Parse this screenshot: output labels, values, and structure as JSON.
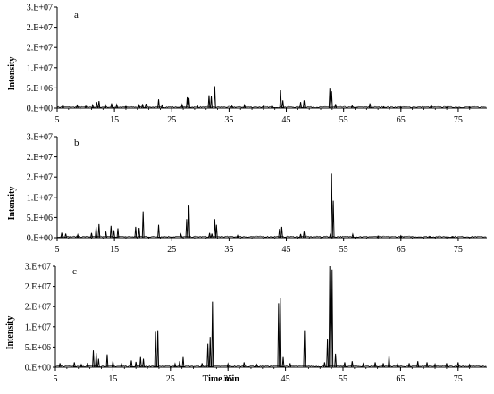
{
  "chart_data": [
    {
      "type": "line",
      "panel_label": "a",
      "ylabel": "Intensity",
      "xlabel": "",
      "xlim": [
        5,
        80
      ],
      "ylim": [
        0,
        30000000
      ],
      "x_ticks": [
        "5",
        "15",
        "25",
        "35",
        "45",
        "55",
        "65",
        "75"
      ],
      "y_ticks": [
        "0.E+00",
        "5.E+06",
        "1.E+07",
        "2.E+07",
        "2.E+07",
        "3.E+07"
      ],
      "grid": false,
      "peaks": [
        [
          6.0,
          1000000
        ],
        [
          8.5,
          800000
        ],
        [
          10.0,
          600000
        ],
        [
          11.2,
          900000
        ],
        [
          11.9,
          1800000
        ],
        [
          12.3,
          2100000
        ],
        [
          13.4,
          1000000
        ],
        [
          14.5,
          1400000
        ],
        [
          15.4,
          1000000
        ],
        [
          17.0,
          500000
        ],
        [
          19.3,
          900000
        ],
        [
          19.9,
          1200000
        ],
        [
          20.5,
          1300000
        ],
        [
          22.7,
          2600000
        ],
        [
          23.3,
          800000
        ],
        [
          26.8,
          1000000
        ],
        [
          27.7,
          3200000
        ],
        [
          28.0,
          3000000
        ],
        [
          29.5,
          700000
        ],
        [
          31.5,
          3800000
        ],
        [
          31.9,
          3600000
        ],
        [
          32.5,
          6500000
        ],
        [
          35.5,
          600000
        ],
        [
          37.7,
          900000
        ],
        [
          41.0,
          600000
        ],
        [
          42.5,
          800000
        ],
        [
          44.0,
          5300000
        ],
        [
          44.4,
          2300000
        ],
        [
          47.5,
          1800000
        ],
        [
          48.1,
          2300000
        ],
        [
          52.6,
          5800000
        ],
        [
          52.9,
          5000000
        ],
        [
          53.6,
          1200000
        ],
        [
          56.5,
          700000
        ],
        [
          59.6,
          1400000
        ],
        [
          62.0,
          400000
        ],
        [
          65.0,
          400000
        ],
        [
          70.3,
          900000
        ],
        [
          73.0,
          400000
        ],
        [
          77.0,
          300000
        ]
      ]
    },
    {
      "type": "line",
      "panel_label": "b",
      "ylabel": "Intensity",
      "xlabel": "",
      "xlim": [
        5,
        80
      ],
      "ylim": [
        0,
        30000000
      ],
      "x_ticks": [
        "5",
        "15",
        "25",
        "35",
        "45",
        "55",
        "65",
        "75"
      ],
      "y_ticks": [
        "0.E+00",
        "5.E+06",
        "1.E+07",
        "2.E+07",
        "2.E+07",
        "3.E+07"
      ],
      "grid": false,
      "peaks": [
        [
          5.8,
          1500000
        ],
        [
          6.5,
          1200000
        ],
        [
          8.6,
          900000
        ],
        [
          11.0,
          1400000
        ],
        [
          11.8,
          3200000
        ],
        [
          12.3,
          4000000
        ],
        [
          13.5,
          1800000
        ],
        [
          14.4,
          3500000
        ],
        [
          14.9,
          2200000
        ],
        [
          15.6,
          2800000
        ],
        [
          18.7,
          3200000
        ],
        [
          19.3,
          2900000
        ],
        [
          20.0,
          7800000
        ],
        [
          22.7,
          3800000
        ],
        [
          26.6,
          1000000
        ],
        [
          27.6,
          5500000
        ],
        [
          28.0,
          9500000
        ],
        [
          31.6,
          1400000
        ],
        [
          32.0,
          1200000
        ],
        [
          32.5,
          5500000
        ],
        [
          32.8,
          3800000
        ],
        [
          36.5,
          700000
        ],
        [
          43.8,
          2600000
        ],
        [
          44.2,
          3200000
        ],
        [
          47.5,
          1100000
        ],
        [
          48.1,
          1800000
        ],
        [
          52.7,
          1200000
        ],
        [
          52.9,
          19000000
        ],
        [
          53.2,
          11000000
        ],
        [
          56.6,
          1000000
        ],
        [
          61.0,
          500000
        ],
        [
          65.0,
          600000
        ],
        [
          70.0,
          400000
        ],
        [
          74.0,
          300000
        ]
      ]
    },
    {
      "type": "line",
      "panel_label": "c",
      "ylabel": "Intensity",
      "xlabel": "Time min",
      "xlim": [
        5,
        80
      ],
      "ylim": [
        0,
        30000000
      ],
      "x_ticks": [
        "5",
        "15",
        "25",
        "35",
        "45",
        "55",
        "65",
        "75"
      ],
      "y_ticks": [
        "0.E+00",
        "5.E+06",
        "1.E+07",
        "2.E+07",
        "2.E+07",
        "3.E+07"
      ],
      "grid": false,
      "peaks": [
        [
          5.8,
          1200000
        ],
        [
          8.3,
          1500000
        ],
        [
          9.5,
          800000
        ],
        [
          10.6,
          1300000
        ],
        [
          11.6,
          5000000
        ],
        [
          12.1,
          4200000
        ],
        [
          12.5,
          2500000
        ],
        [
          14.0,
          3800000
        ],
        [
          15.0,
          1800000
        ],
        [
          16.5,
          900000
        ],
        [
          18.2,
          2000000
        ],
        [
          19.0,
          1600000
        ],
        [
          19.8,
          3000000
        ],
        [
          20.3,
          2500000
        ],
        [
          22.4,
          10500000
        ],
        [
          22.8,
          11000000
        ],
        [
          25.8,
          1000000
        ],
        [
          26.6,
          1800000
        ],
        [
          27.2,
          3000000
        ],
        [
          30.5,
          1200000
        ],
        [
          31.5,
          7000000
        ],
        [
          31.9,
          9000000
        ],
        [
          32.3,
          19500000
        ],
        [
          35.0,
          1000000
        ],
        [
          37.8,
          1500000
        ],
        [
          40.0,
          800000
        ],
        [
          43.8,
          19000000
        ],
        [
          44.1,
          20500000
        ],
        [
          44.6,
          3000000
        ],
        [
          45.8,
          1200000
        ],
        [
          48.3,
          11000000
        ],
        [
          51.8,
          1500000
        ],
        [
          52.3,
          8500000
        ],
        [
          52.7,
          30000000
        ],
        [
          53.1,
          29000000
        ],
        [
          53.7,
          4000000
        ],
        [
          55.3,
          1500000
        ],
        [
          56.6,
          1800000
        ],
        [
          58.5,
          1000000
        ],
        [
          60.6,
          1500000
        ],
        [
          62.0,
          1200000
        ],
        [
          63.0,
          3500000
        ],
        [
          64.5,
          1000000
        ],
        [
          66.5,
          1200000
        ],
        [
          68.0,
          1800000
        ],
        [
          69.6,
          1500000
        ],
        [
          71.0,
          900000
        ],
        [
          73.0,
          1200000
        ],
        [
          75.0,
          1500000
        ],
        [
          77.0,
          800000
        ]
      ]
    }
  ]
}
